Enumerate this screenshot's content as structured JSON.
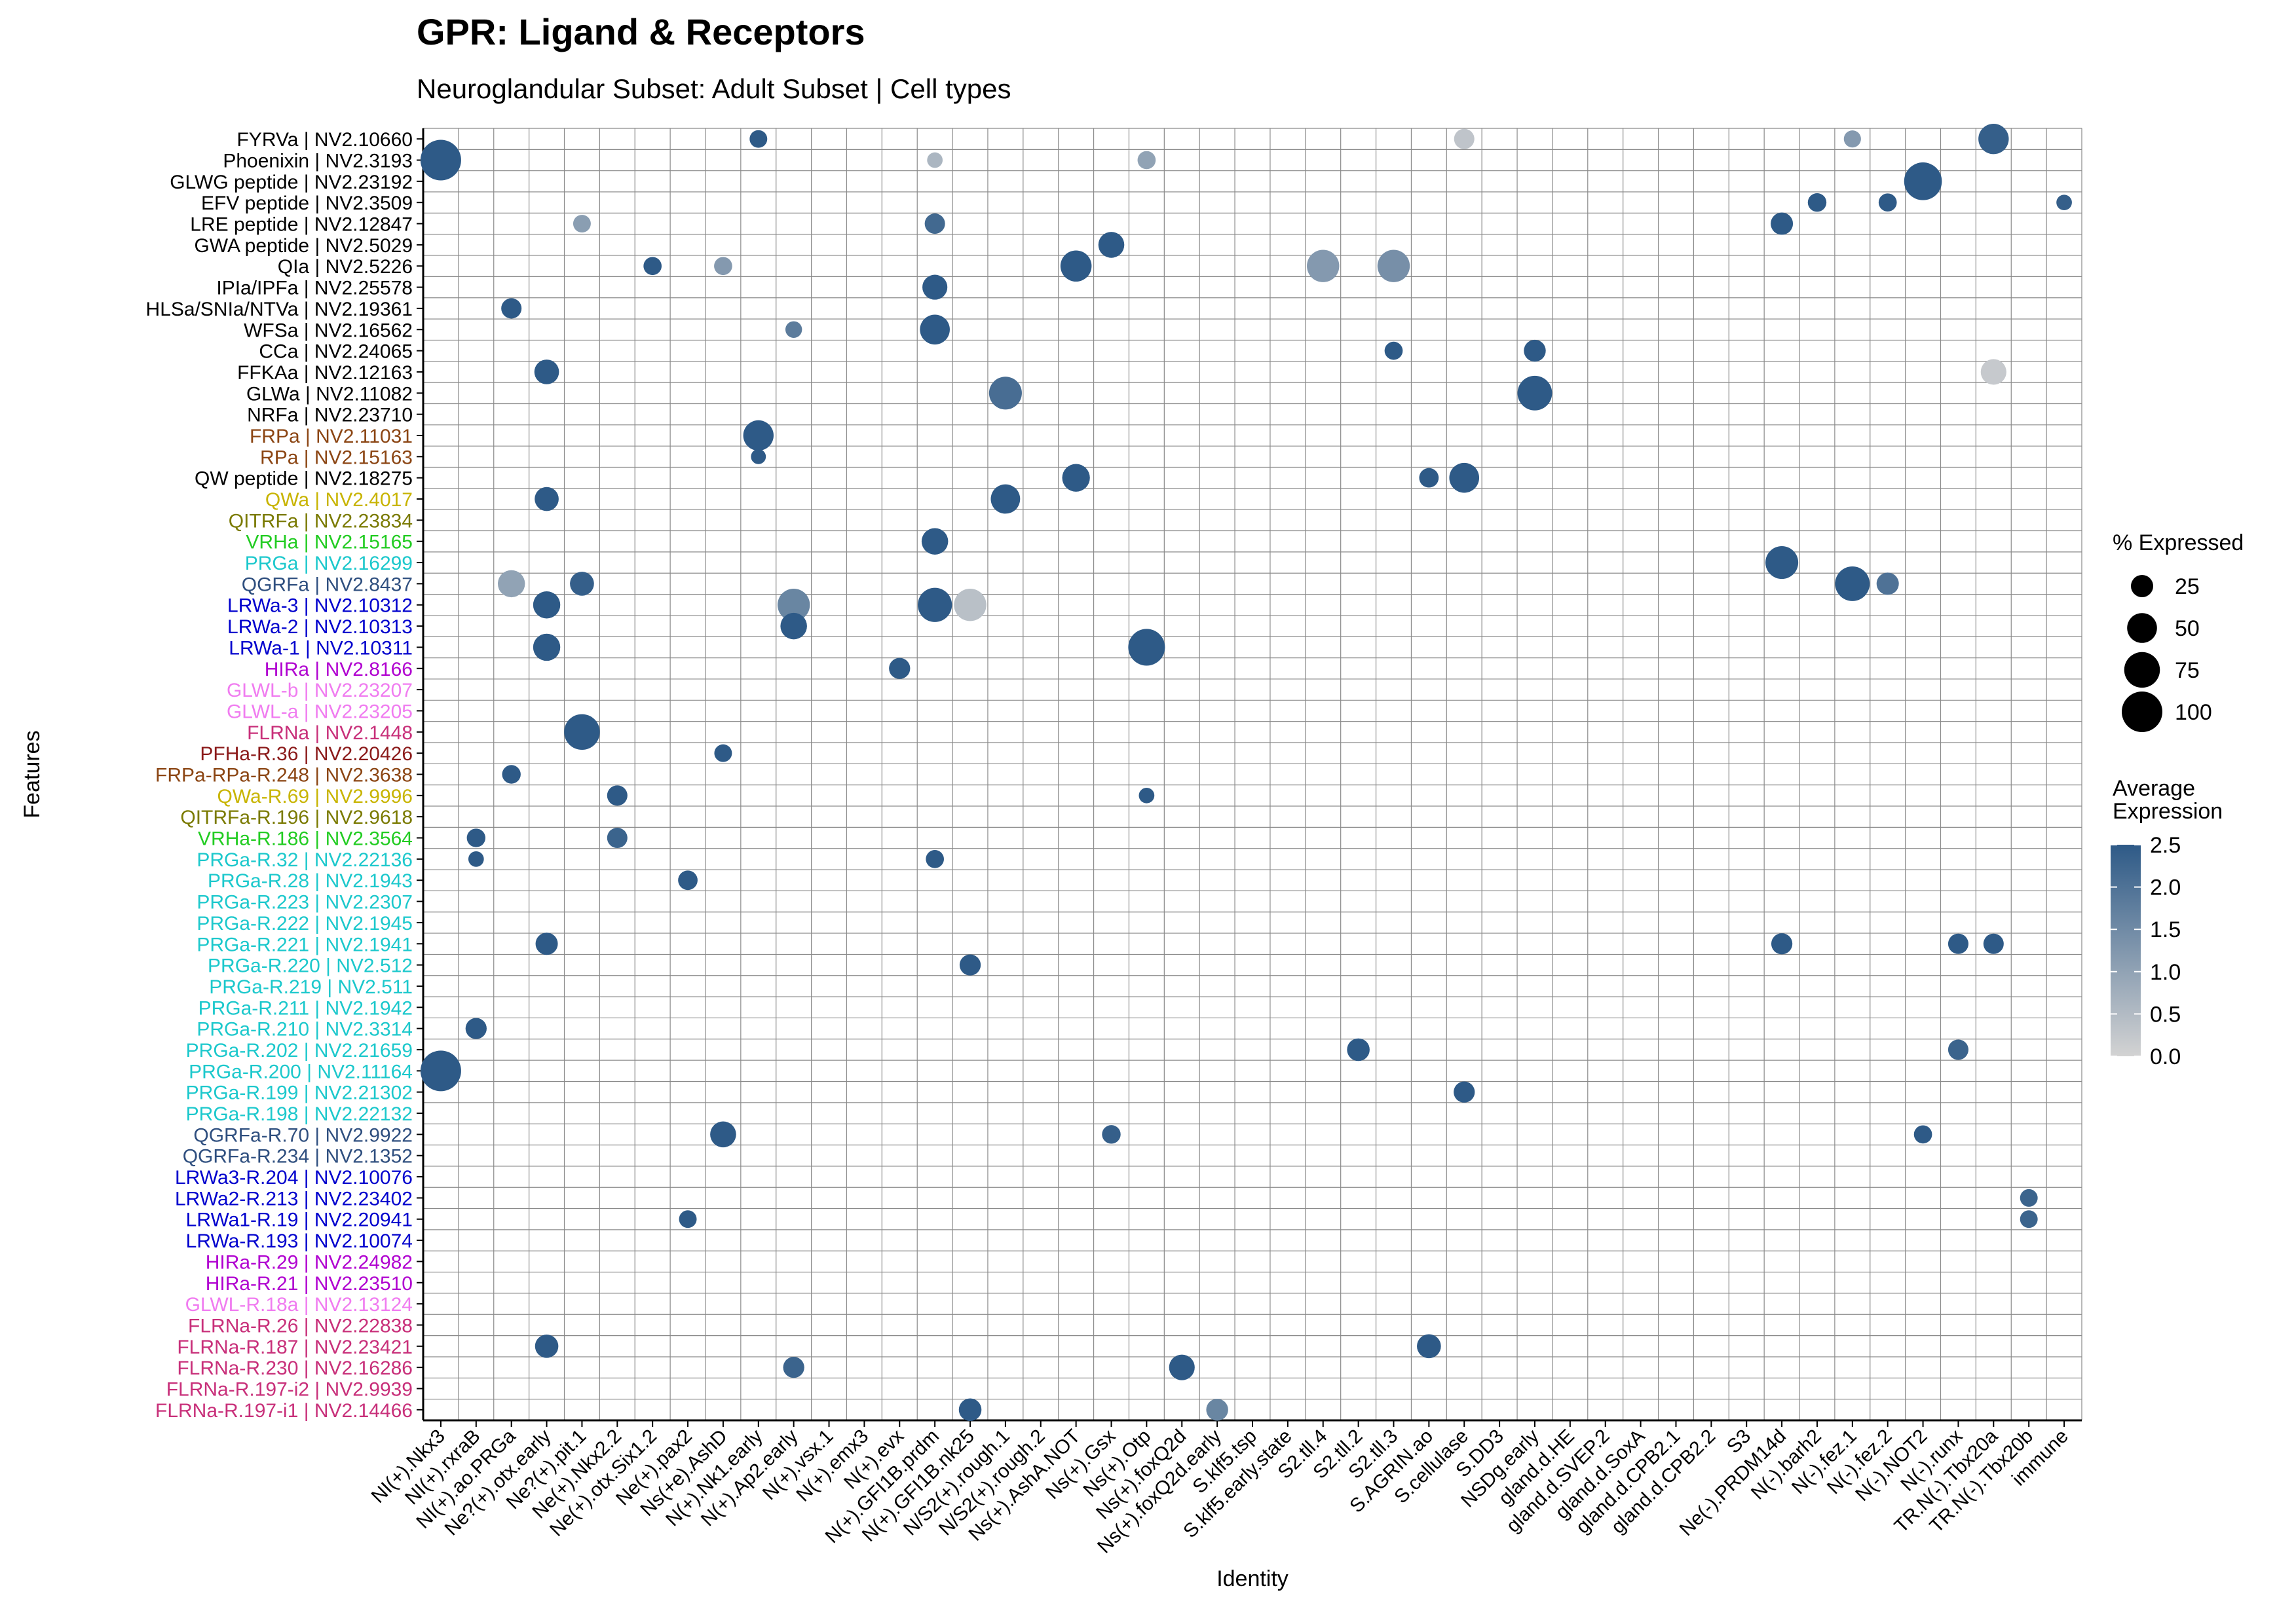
{
  "chart_data": {
    "type": "dotplot",
    "title": "GPR: Ligand & Receptors",
    "subtitle": "Neuroglandular Subset: Adult Subset | Cell types",
    "xlabel": "Identity",
    "ylabel": "Features",
    "x_categories": [
      "NI(+).Nkx3",
      "NI(+).rxraB",
      "NI(+).ao.PRGa",
      "Ne?(+).otx.early",
      "Ne?(+).pit.1",
      "Ne(+).Nkx2.2",
      "Ne(+).otx.Six1.2",
      "Ne(+).pax2",
      "Ns(+e).AshD",
      "N(+).Nk1.early",
      "N(+).Ap2.early",
      "N(+).vsx.1",
      "N(+).emx3",
      "N(+).evx",
      "N(+).GFI1B.prdm",
      "N(+).GFI1B.nk25",
      "N/S2(+).rough.1",
      "N/S2(+).rough.2",
      "Ns(+).AshA.NOT",
      "Ns(+).Gsx",
      "Ns(+).Otp",
      "Ns(+).foxQ2d",
      "Ns(+).foxQ2d.early",
      "S.klf5.tsp",
      "S.klf5.early.state",
      "S2.tll.4",
      "S2.tll.2",
      "S2.tll.3",
      "S.AGRIN.ao",
      "S.cellulase",
      "S.DD3",
      "NSDg.early",
      "gland.d.HE",
      "gland.d.SVEP.2",
      "gland.d.SoxA",
      "gland.d.CPB2.1",
      "gland.d.CPB2.2",
      "S3",
      "Ne(-).PRDM14d",
      "N(-).barh2",
      "N(-).fez.1",
      "N(-).fez.2",
      "N(-).NOT2",
      "N(-).runx",
      "TR.N(-).Tbx20a",
      "TR.N(-).Tbx20b",
      "immune"
    ],
    "y_categories": [
      {
        "label": "FYRVa | NV2.10660",
        "color": "#000000"
      },
      {
        "label": "Phoenixin | NV2.3193",
        "color": "#000000"
      },
      {
        "label": "GLWG peptide | NV2.23192",
        "color": "#000000"
      },
      {
        "label": "EFV peptide | NV2.3509",
        "color": "#000000"
      },
      {
        "label": "LRE peptide | NV2.12847",
        "color": "#000000"
      },
      {
        "label": "GWA peptide | NV2.5029",
        "color": "#000000"
      },
      {
        "label": "QIa | NV2.5226",
        "color": "#000000"
      },
      {
        "label": "IPIa/IPFa | NV2.25578",
        "color": "#000000"
      },
      {
        "label": "HLSa/SNIa/NTVa | NV2.19361",
        "color": "#000000"
      },
      {
        "label": "WFSa | NV2.16562",
        "color": "#000000"
      },
      {
        "label": "CCa | NV2.24065",
        "color": "#000000"
      },
      {
        "label": "FFKAa | NV2.12163",
        "color": "#000000"
      },
      {
        "label": "GLWa | NV2.11082",
        "color": "#000000"
      },
      {
        "label": "NRFa | NV2.23710",
        "color": "#000000"
      },
      {
        "label": "FRPa | NV2.11031",
        "color": "#8B4513"
      },
      {
        "label": "RPa | NV2.15163",
        "color": "#8B4513"
      },
      {
        "label": "QW peptide | NV2.18275",
        "color": "#000000"
      },
      {
        "label": "QWa | NV2.4017",
        "color": "#C8B400"
      },
      {
        "label": "QITRFa | NV2.23834",
        "color": "#7A7A00"
      },
      {
        "label": "VRHa | NV2.15165",
        "color": "#22CC22"
      },
      {
        "label": "PRGa | NV2.16299",
        "color": "#1CC8CC"
      },
      {
        "label": "QGRFa | NV2.8437",
        "color": "#2F4F7F"
      },
      {
        "label": "LRWa-3 | NV2.10312",
        "color": "#0000CD"
      },
      {
        "label": "LRWa-2 | NV2.10313",
        "color": "#0000CD"
      },
      {
        "label": "LRWa-1 | NV2.10311",
        "color": "#0000CD"
      },
      {
        "label": "HIRa | NV2.8166",
        "color": "#B000D0"
      },
      {
        "label": "GLWL-b | NV2.23207",
        "color": "#F07CF0"
      },
      {
        "label": "GLWL-a | NV2.23205",
        "color": "#F07CF0"
      },
      {
        "label": "FLRNa | NV2.1448",
        "color": "#C8307A"
      },
      {
        "label": "PFHa-R.36 | NV2.20426",
        "color": "#8B1A1A"
      },
      {
        "label": "FRPa-RPa-R.248 | NV2.3638",
        "color": "#8B4513"
      },
      {
        "label": "QWa-R.69 | NV2.9996",
        "color": "#C8B400"
      },
      {
        "label": "QITRFa-R.196 | NV2.9618",
        "color": "#7A7A00"
      },
      {
        "label": "VRHa-R.186 | NV2.3564",
        "color": "#22CC22"
      },
      {
        "label": "PRGa-R.32 | NV2.22136",
        "color": "#1CC8CC"
      },
      {
        "label": "PRGa-R.28 | NV2.1943",
        "color": "#1CC8CC"
      },
      {
        "label": "PRGa-R.223 | NV2.2307",
        "color": "#1CC8CC"
      },
      {
        "label": "PRGa-R.222 | NV2.1945",
        "color": "#1CC8CC"
      },
      {
        "label": "PRGa-R.221 | NV2.1941",
        "color": "#1CC8CC"
      },
      {
        "label": "PRGa-R.220 | NV2.512",
        "color": "#1CC8CC"
      },
      {
        "label": "PRGa-R.219 | NV2.511",
        "color": "#1CC8CC"
      },
      {
        "label": "PRGa-R.211 | NV2.1942",
        "color": "#1CC8CC"
      },
      {
        "label": "PRGa-R.210 | NV2.3314",
        "color": "#1CC8CC"
      },
      {
        "label": "PRGa-R.202 | NV2.21659",
        "color": "#1CC8CC"
      },
      {
        "label": "PRGa-R.200 | NV2.11164",
        "color": "#1CC8CC"
      },
      {
        "label": "PRGa-R.199 | NV2.21302",
        "color": "#1CC8CC"
      },
      {
        "label": "PRGa-R.198 | NV2.22132",
        "color": "#1CC8CC"
      },
      {
        "label": "QGRFa-R.70 | NV2.9922",
        "color": "#2F4F7F"
      },
      {
        "label": "QGRFa-R.234 | NV2.1352",
        "color": "#2F4F7F"
      },
      {
        "label": "LRWa3-R.204 | NV2.10076",
        "color": "#0000CD"
      },
      {
        "label": "LRWa2-R.213 | NV2.23402",
        "color": "#0000CD"
      },
      {
        "label": "LRWa1-R.19 | NV2.20941",
        "color": "#0000CD"
      },
      {
        "label": "LRWa-R.193 | NV2.10074",
        "color": "#0000CD"
      },
      {
        "label": "HIRa-R.29 | NV2.24982",
        "color": "#B000D0"
      },
      {
        "label": "HIRa-R.21 | NV2.23510",
        "color": "#B000D0"
      },
      {
        "label": "GLWL-R.18a | NV2.13124",
        "color": "#F07CF0"
      },
      {
        "label": "FLRNa-R.26 | NV2.22838",
        "color": "#C8307A"
      },
      {
        "label": "FLRNa-R.187 | NV2.23421",
        "color": "#C8307A"
      },
      {
        "label": "FLRNa-R.230 | NV2.16286",
        "color": "#C8307A"
      },
      {
        "label": "FLRNa-R.197-i2 | NV2.9939",
        "color": "#C8307A"
      },
      {
        "label": "FLRNa-R.197-i1 | NV2.14466",
        "color": "#C8307A"
      }
    ],
    "size_legend": {
      "title": "% Expressed",
      "values": [
        25,
        50,
        75,
        100
      ]
    },
    "color_legend": {
      "title_line1": "Average",
      "title_line2": "Expression",
      "ticks": [
        "2.5",
        "2.0",
        "1.5",
        "1.0",
        "0.5",
        "0.0"
      ],
      "min": 0,
      "max": 2.5,
      "low_color": "#d3d3d3",
      "high_color": "#2e5a87"
    },
    "points": [
      [
        "FYRVa | NV2.10660",
        "N(+).Nk1.early",
        14,
        2.5
      ],
      [
        "FYRVa | NV2.10660",
        "TR.N(-).Tbx20a",
        52,
        2.4
      ],
      [
        "FYRVa | NV2.10660",
        "S.cellulase",
        20,
        0.3
      ],
      [
        "FYRVa | NV2.10660",
        "N(-).fez.1",
        13,
        1.2
      ],
      [
        "Phoenixin | NV2.3193",
        "NI(+).Nkx3",
        100,
        2.5
      ],
      [
        "Phoenixin | NV2.3193",
        "N(+).GFI1B.prdm",
        10,
        0.6
      ],
      [
        "Phoenixin | NV2.3193",
        "Ns(+).Otp",
        15,
        1.0
      ],
      [
        "GLWG peptide | NV2.23192",
        "N(-).NOT2",
        85,
        2.5
      ],
      [
        "EFV peptide | NV2.3509",
        "N(-).barh2",
        16,
        2.5
      ],
      [
        "EFV peptide | NV2.3509",
        "N(-).fez.2",
        15,
        2.5
      ],
      [
        "EFV peptide | NV2.3509",
        "immune",
        10,
        2.4
      ],
      [
        "LRE peptide | NV2.12847",
        "Ne(-).PRDM14d",
        25,
        2.5
      ],
      [
        "LRE peptide | NV2.12847",
        "N(+).GFI1B.prdm",
        20,
        2.2
      ],
      [
        "LRE peptide | NV2.12847",
        "Ne?(+).pit.1",
        14,
        1.1
      ],
      [
        "GWA peptide | NV2.5029",
        "Ns(+).Gsx",
        36,
        2.5
      ],
      [
        "QIa | NV2.5226",
        "Ns(+).AshA.NOT",
        55,
        2.5
      ],
      [
        "QIa | NV2.5226",
        "S2.tll.4",
        60,
        1.2
      ],
      [
        "QIa | NV2.5226",
        "S2.tll.3",
        60,
        1.4
      ],
      [
        "QIa | NV2.5226",
        "Ne(+).otx.Six1.2",
        15,
        2.5
      ],
      [
        "QIa | NV2.5226",
        "Ns(+e).AshD",
        15,
        1.2
      ],
      [
        "IPIa/IPFa | NV2.25578",
        "N(+).GFI1B.prdm",
        33,
        2.5
      ],
      [
        "HLSa/SNIa/NTVa | NV2.19361",
        "NI(+).ao.PRGa",
        20,
        2.5
      ],
      [
        "WFSa | NV2.16562",
        "N(+).GFI1B.prdm",
        50,
        2.5
      ],
      [
        "WFSa | NV2.16562",
        "N(+).Ap2.early",
        12,
        1.8
      ],
      [
        "CCa | NV2.24065",
        "NSDg.early",
        24,
        2.5
      ],
      [
        "CCa | NV2.24065",
        "S2.tll.3",
        15,
        2.5
      ],
      [
        "FFKAa | NV2.12163",
        "Ne?(+).otx.early",
        32,
        2.5
      ],
      [
        "FFKAa | NV2.12163",
        "TR.N(-).Tbx20a",
        35,
        0.2
      ],
      [
        "GLWa | NV2.11082",
        "NSDg.early",
        70,
        2.5
      ],
      [
        "GLWa | NV2.11082",
        "N/S2(+).rough.1",
        62,
        2.1
      ],
      [
        "FRPa | NV2.11031",
        "N(+).Nk1.early",
        52,
        2.5
      ],
      [
        "RPa | NV2.15163",
        "N(+).Nk1.early",
        9,
        2.5
      ],
      [
        "QW peptide | NV2.18275",
        "Ns(+).AshA.NOT",
        42,
        2.5
      ],
      [
        "QW peptide | NV2.18275",
        "S.cellulase",
        50,
        2.5
      ],
      [
        "QW peptide | NV2.18275",
        "S.AGRIN.ao",
        18,
        2.5
      ],
      [
        "QWa | NV2.4017",
        "N/S2(+).rough.1",
        48,
        2.5
      ],
      [
        "QWa | NV2.4017",
        "Ne?(+).otx.early",
        30,
        2.5
      ],
      [
        "VRHa | NV2.15165",
        "N(+).GFI1B.prdm",
        38,
        2.5
      ],
      [
        "PRGa | NV2.16299",
        "Ne(-).PRDM14d",
        62,
        2.5
      ],
      [
        "QGRFa | NV2.8437",
        "N(-).fez.1",
        70,
        2.5
      ],
      [
        "QGRFa | NV2.8437",
        "NI(+).ao.PRGa",
        40,
        1.0
      ],
      [
        "QGRFa | NV2.8437",
        "Ne?(+).pit.1",
        30,
        2.4
      ],
      [
        "QGRFa | NV2.8437",
        "N(-).fez.2",
        25,
        2.0
      ],
      [
        "LRWa-3 | NV2.10312",
        "N(+).GFI1B.prdm",
        68,
        2.5
      ],
      [
        "LRWa-3 | NV2.10312",
        "N(+).GFI1B.nk25",
        60,
        0.4
      ],
      [
        "LRWa-3 | NV2.10312",
        "N(+).Ap2.early",
        60,
        1.6
      ],
      [
        "LRWa-3 | NV2.10312",
        "Ne?(+).otx.early",
        40,
        2.5
      ],
      [
        "LRWa-2 | NV2.10313",
        "N(+).Ap2.early",
        38,
        2.5
      ],
      [
        "LRWa-1 | NV2.10311",
        "Ns(+).Otp",
        80,
        2.5
      ],
      [
        "LRWa-1 | NV2.10311",
        "Ne?(+).otx.early",
        40,
        2.5
      ],
      [
        "HIRa | NV2.8166",
        "N(+).evx",
        22,
        2.5
      ],
      [
        "FLRNa | NV2.1448",
        "Ne?(+).pit.1",
        75,
        2.5
      ],
      [
        "PFHa-R.36 | NV2.20426",
        "Ns(+e).AshD",
        14,
        2.5
      ],
      [
        "FRPa-RPa-R.248 | NV2.3638",
        "NI(+).ao.PRGa",
        16,
        2.5
      ],
      [
        "QWa-R.69 | NV2.9996",
        "Ne(+).Nkx2.2",
        20,
        2.5
      ],
      [
        "QWa-R.69 | NV2.9996",
        "Ns(+).Otp",
        10,
        2.5
      ],
      [
        "VRHa-R.186 | NV2.3564",
        "NI(+).rxraB",
        16,
        2.5
      ],
      [
        "VRHa-R.186 | NV2.3564",
        "Ne(+).Nkx2.2",
        20,
        2.3
      ],
      [
        "PRGa-R.32 | NV2.22136",
        "N(+).GFI1B.prdm",
        15,
        2.5
      ],
      [
        "PRGa-R.32 | NV2.22136",
        "NI(+).rxraB",
        10,
        2.5
      ],
      [
        "PRGa-R.28 | NV2.1943",
        "Ne(+).pax2",
        18,
        2.5
      ],
      [
        "PRGa-R.221 | NV2.1941",
        "Ne?(+).otx.early",
        25,
        2.5
      ],
      [
        "PRGa-R.221 | NV2.1941",
        "Ne(-).PRDM14d",
        22,
        2.5
      ],
      [
        "PRGa-R.221 | NV2.1941",
        "N(-).runx",
        20,
        2.5
      ],
      [
        "PRGa-R.221 | NV2.1941",
        "TR.N(-).Tbx20a",
        20,
        2.5
      ],
      [
        "PRGa-R.220 | NV2.512",
        "N(+).GFI1B.nk25",
        22,
        2.5
      ],
      [
        "PRGa-R.210 | NV2.3314",
        "NI(+).rxraB",
        22,
        2.5
      ],
      [
        "PRGa-R.202 | NV2.21659",
        "S2.tll.2",
        26,
        2.5
      ],
      [
        "PRGa-R.202 | NV2.21659",
        "N(-).runx",
        20,
        2.3
      ],
      [
        "PRGa-R.200 | NV2.11164",
        "NI(+).Nkx3",
        100,
        2.5
      ],
      [
        "PRGa-R.199 | NV2.21302",
        "S.cellulase",
        22,
        2.5
      ],
      [
        "QGRFa-R.70 | NV2.9922",
        "Ns(+e).AshD",
        36,
        2.5
      ],
      [
        "QGRFa-R.70 | NV2.9922",
        "Ns(+).Gsx",
        16,
        2.4
      ],
      [
        "QGRFa-R.70 | NV2.9922",
        "N(-).NOT2",
        15,
        2.5
      ],
      [
        "LRWa2-R.213 | NV2.23402",
        "TR.N(-).Tbx20b",
        14,
        2.3
      ],
      [
        "LRWa1-R.19 | NV2.20941",
        "TR.N(-).Tbx20b",
        14,
        2.3
      ],
      [
        "LRWa1-R.19 | NV2.20941",
        "Ne(+).pax2",
        14,
        2.5
      ],
      [
        "FLRNa-R.187 | NV2.23421",
        "S.AGRIN.ao",
        30,
        2.5
      ],
      [
        "FLRNa-R.187 | NV2.23421",
        "Ne?(+).otx.early",
        28,
        2.5
      ],
      [
        "FLRNa-R.230 | NV2.16286",
        "Ns(+).foxQ2d",
        35,
        2.5
      ],
      [
        "FLRNa-R.230 | NV2.16286",
        "N(+).Ap2.early",
        22,
        2.3
      ],
      [
        "FLRNa-R.197-i1 | NV2.14466",
        "N(+).GFI1B.nk25",
        26,
        2.5
      ],
      [
        "FLRNa-R.197-i1 | NV2.14466",
        "Ns(+).foxQ2d.early",
        24,
        1.6
      ]
    ],
    "background_dots": "numerous small light-grey dots (low % expressed, low average expression) scattered across the grid"
  }
}
